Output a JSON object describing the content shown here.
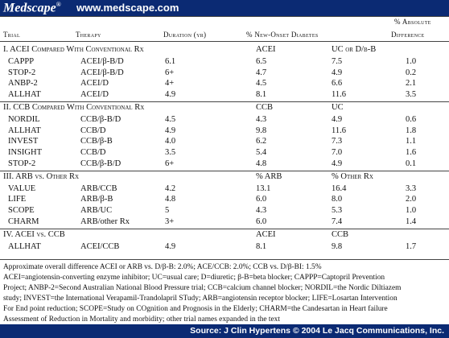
{
  "header": {
    "logo": "Medscape",
    "logo_mark": "®",
    "url": "www.medscape.com"
  },
  "columns": {
    "trial": "Trial",
    "therapy": "Therapy",
    "duration": "Duration (yr)",
    "new_onset": "% New-Onset Diabetes",
    "abs_diff_line1": "% Absolute",
    "abs_diff_line2": "Difference"
  },
  "sections": [
    {
      "title": "I. ACEI Compared With Conventional Rx",
      "col_a": "ACEI",
      "col_b": "UC or D/β-B",
      "rows": [
        {
          "trial": "CAPPP",
          "therapy": "ACEI/β-B/D",
          "duration": "6.1",
          "a": "6.5",
          "b": "7.5",
          "diff": "1.0"
        },
        {
          "trial": "STOP-2",
          "therapy": "ACEI/β-B/D",
          "duration": "6+",
          "a": "4.7",
          "b": "4.9",
          "diff": "0.2"
        },
        {
          "trial": "ANBP-2",
          "therapy": "ACEI/D",
          "duration": "4+",
          "a": "4.5",
          "b": "6.6",
          "diff": "2.1"
        },
        {
          "trial": "ALLHAT",
          "therapy": "ACEI/D",
          "duration": "4.9",
          "a": "8.1",
          "b": "11.6",
          "diff": "3.5"
        }
      ]
    },
    {
      "title": "II. CCB Compared With Conventional Rx",
      "col_a": "CCB",
      "col_b": "UC",
      "rows": [
        {
          "trial": "NORDIL",
          "therapy": "CCB/β-B/D",
          "duration": "4.5",
          "a": "4.3",
          "b": "4.9",
          "diff": "0.6"
        },
        {
          "trial": "ALLHAT",
          "therapy": "CCB/D",
          "duration": "4.9",
          "a": "9.8",
          "b": "11.6",
          "diff": "1.8"
        },
        {
          "trial": "INVEST",
          "therapy": "CCB/β-B",
          "duration": "4.0",
          "a": "6.2",
          "b": "7.3",
          "diff": "1.1"
        },
        {
          "trial": "INSIGHT",
          "therapy": "CCB/D",
          "duration": "3.5",
          "a": "5.4",
          "b": "7.0",
          "diff": "1.6"
        },
        {
          "trial": "STOP-2",
          "therapy": "CCB/β-B/D",
          "duration": "6+",
          "a": "4.8",
          "b": "4.9",
          "diff": "0.1"
        }
      ]
    },
    {
      "title": "III. ARB vs. Other Rx",
      "col_a": "% ARB",
      "col_b": "% Other Rx",
      "rows": [
        {
          "trial": "VALUE",
          "therapy": "ARB/CCB",
          "duration": "4.2",
          "a": "13.1",
          "b": "16.4",
          "diff": "3.3"
        },
        {
          "trial": "LIFE",
          "therapy": "ARB/β-B",
          "duration": "4.8",
          "a": "6.0",
          "b": "8.0",
          "diff": "2.0"
        },
        {
          "trial": "SCOPE",
          "therapy": "ARB/UC",
          "duration": "5",
          "a": "4.3",
          "b": "5.3",
          "diff": "1.0"
        },
        {
          "trial": "CHARM",
          "therapy": "ARB/other Rx",
          "duration": "3+",
          "a": "6.0",
          "b": "7.4",
          "diff": "1.4"
        }
      ]
    },
    {
      "title": "IV. ACEI vs. CCB",
      "col_a": "ACEI",
      "col_b": "CCB",
      "rows": [
        {
          "trial": "ALLHAT",
          "therapy": "ACEI/CCB",
          "duration": "4.9",
          "a": "8.1",
          "b": "9.8",
          "diff": "1.7"
        }
      ]
    }
  ],
  "notes": [
    "Approximate overall difference ACEI or ARB vs. D/β-B: 2.0%; ACE/CCB: 2.0%; CCB vs. D/β-BI: 1.5%",
    "ACEI=angiotensin-converting enzyme inhibitor; UC=usual care; D=diuretic; β-B=beta blocker; CAPPP=Captopril Prevention",
    "Project; ANBP-2=Second Australian National Blood Pressure trial; CCB=calcium channel blocker; NORDIL=the Nordic Diltiazem",
    "study; INVEST=the International Verapamil-Trandolapril STudy; ARB=angiotensin receptor blocker; LIFE=Losartan Intervention",
    "For End point reduction; SCOPE=Study on COgnition and Prognosis in the Elderly; CHARM=the Candesartan in Heart failure",
    "Assessment of Reduction in Mortality and morbidity; other trial names expanded in the text"
  ],
  "footer": {
    "source": "Source: J Clin Hypertens © 2004 Le Jacq Communications, Inc."
  }
}
